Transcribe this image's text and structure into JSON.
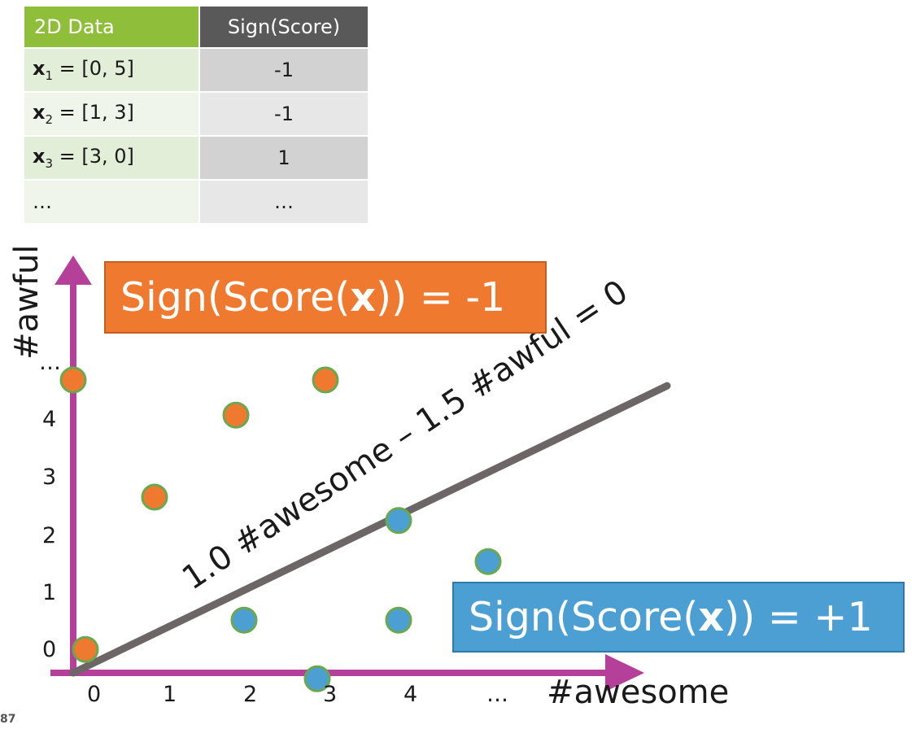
{
  "table": {
    "headers": [
      "2D Data",
      "Sign(Score)"
    ],
    "rows": [
      {
        "name": "x",
        "sub": "1",
        "value": " = [0, 5]",
        "sign": "-1"
      },
      {
        "name": "x",
        "sub": "2",
        "value": " = [1, 3]",
        "sign": "-1"
      },
      {
        "name": "x",
        "sub": "3",
        "value": " = [3, 0]",
        "sign": "1"
      },
      {
        "name": "",
        "sub": "",
        "value": "…",
        "sign": "…"
      }
    ]
  },
  "chart_data": {
    "type": "scatter",
    "xlabel": "#awesome",
    "ylabel": "#awful",
    "x_ticks": [
      "0",
      "1",
      "2",
      "3",
      "4",
      "…"
    ],
    "y_ticks": [
      "0",
      "1",
      "2",
      "3",
      "4",
      "…"
    ],
    "decision_line": {
      "label": "1.0 #awesome – 1.5 #awful = 0",
      "from": [
        0,
        0
      ],
      "to": [
        7.3,
        4.9
      ],
      "color": "#6d6667"
    },
    "series": [
      {
        "label_prefix": "Sign(Score(",
        "label_bold": "x",
        "label_suffix": ")) = -1",
        "color": "#ef7a2f",
        "points": [
          [
            0,
            5
          ],
          [
            1,
            3
          ],
          [
            2,
            4.4
          ],
          [
            3.1,
            5
          ],
          [
            0.15,
            0.4
          ]
        ]
      },
      {
        "label_prefix": "Sign(Score(",
        "label_bold": "x",
        "label_suffix": ")) = +1",
        "color": "#4b9fd2",
        "points": [
          [
            4,
            2.6
          ],
          [
            5.1,
            1.9
          ],
          [
            2.1,
            0.9
          ],
          [
            4,
            0.9
          ],
          [
            3,
            -0.1
          ]
        ]
      }
    ],
    "axis_color": "#b5409a",
    "point_border": "#6aa84f"
  },
  "page": {
    "number": "87"
  }
}
